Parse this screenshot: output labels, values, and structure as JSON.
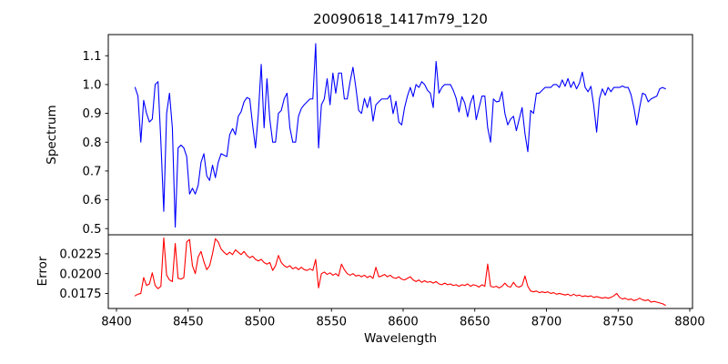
{
  "title": "20090618_1417m79_120",
  "xaxis": {
    "label": "Wavelength",
    "xlim": [
      8394.3,
      8801.9
    ],
    "tick_values": [
      8400,
      8450,
      8500,
      8550,
      8600,
      8650,
      8700,
      8750,
      8800
    ],
    "tick_labels": [
      "8400",
      "8450",
      "8500",
      "8550",
      "8600",
      "8650",
      "8700",
      "8750",
      "8800"
    ]
  },
  "colors": {
    "spectrum_line": "#0000ff",
    "error_line": "#ff0000",
    "axes": "#000000",
    "background": "#ffffff"
  },
  "chart_data": [
    {
      "type": "line",
      "name": "spectrum",
      "ylabel": "Spectrum",
      "color": "#0000ff",
      "grid": false,
      "legend": null,
      "ylim": [
        0.4785,
        1.1735
      ],
      "ytick_values": [
        0.5,
        0.6,
        0.7,
        0.8,
        0.9,
        1.0,
        1.1
      ],
      "ytick_labels": [
        "0.5",
        "0.6",
        "0.7",
        "0.8",
        "0.9",
        "1.0",
        "1.1"
      ],
      "x_start": 8413,
      "x_step": 2,
      "y": [
        0.99,
        0.96,
        0.8,
        0.945,
        0.9,
        0.87,
        0.88,
        1.0,
        1.01,
        0.8,
        0.56,
        0.9,
        0.97,
        0.85,
        0.505,
        0.78,
        0.79,
        0.78,
        0.75,
        0.62,
        0.64,
        0.62,
        0.65,
        0.73,
        0.76,
        0.683,
        0.667,
        0.72,
        0.677,
        0.73,
        0.76,
        0.755,
        0.75,
        0.826,
        0.847,
        0.826,
        0.89,
        0.906,
        0.94,
        0.955,
        0.95,
        0.86,
        0.78,
        0.9,
        1.07,
        0.85,
        1.02,
        0.879,
        0.8,
        0.8,
        0.9,
        0.91,
        0.95,
        0.97,
        0.85,
        0.8,
        0.8,
        0.89,
        0.917,
        0.93,
        0.94,
        0.95,
        0.95,
        1.142,
        0.78,
        0.93,
        0.95,
        1.02,
        0.93,
        1.04,
        0.97,
        1.04,
        1.04,
        0.95,
        0.95,
        1.01,
        1.06,
        0.99,
        0.91,
        0.9,
        0.952,
        0.92,
        0.958,
        0.873,
        0.93,
        0.94,
        0.95,
        0.95,
        0.95,
        0.963,
        0.899,
        0.942,
        0.87,
        0.86,
        0.92,
        0.96,
        0.99,
        0.958,
        1.0,
        0.99,
        1.01,
        1.0,
        0.98,
        0.97,
        0.92,
        1.08,
        0.97,
        0.99,
        1.0,
        1.0,
        1.0,
        0.98,
        0.952,
        0.905,
        0.958,
        0.936,
        0.888,
        0.936,
        0.963,
        0.878,
        0.92,
        0.96,
        0.96,
        0.85,
        0.8,
        0.95,
        0.94,
        0.942,
        0.975,
        0.9,
        0.86,
        0.88,
        0.89,
        0.84,
        0.88,
        0.92,
        0.83,
        0.767,
        0.91,
        0.9,
        0.97,
        0.97,
        0.98,
        0.99,
        0.99,
        0.99,
        1.0,
        1.0,
        0.99,
        1.016,
        0.994,
        1.021,
        0.99,
        1.01,
        0.985,
        1.005,
        1.043,
        0.99,
        0.975,
        0.994,
        0.926,
        0.835,
        0.952,
        0.985,
        0.963,
        0.99,
        0.975,
        0.99,
        0.99,
        0.99,
        0.995,
        0.99,
        0.99,
        0.965,
        0.92,
        0.86,
        0.92,
        0.97,
        0.965,
        0.94,
        0.95,
        0.955,
        0.96,
        0.985,
        0.99,
        0.985
      ]
    },
    {
      "type": "line",
      "name": "error",
      "ylabel": "Error",
      "color": "#ff0000",
      "grid": false,
      "legend": null,
      "ylim": [
        0.0156,
        0.0249
      ],
      "ytick_values": [
        0.0175,
        0.02,
        0.0225
      ],
      "ytick_labels": [
        "0.0175",
        "0.0200",
        "0.0225"
      ],
      "x_start": 8413,
      "x_step": 2,
      "y": [
        0.0172,
        0.0174,
        0.0175,
        0.0195,
        0.0185,
        0.0187,
        0.0201,
        0.0185,
        0.0181,
        0.0184,
        0.0245,
        0.0198,
        0.0192,
        0.019,
        0.0238,
        0.0194,
        0.0193,
        0.0195,
        0.024,
        0.0243,
        0.021,
        0.02,
        0.0221,
        0.0228,
        0.0215,
        0.0205,
        0.021,
        0.0225,
        0.0244,
        0.024,
        0.0231,
        0.0227,
        0.0224,
        0.0227,
        0.0224,
        0.023,
        0.0227,
        0.0224,
        0.0228,
        0.0223,
        0.022,
        0.0222,
        0.0218,
        0.0216,
        0.0218,
        0.0214,
        0.0212,
        0.0214,
        0.0204,
        0.021,
        0.0223,
        0.0214,
        0.021,
        0.0208,
        0.021,
        0.0206,
        0.0208,
        0.0205,
        0.0208,
        0.0205,
        0.0204,
        0.0206,
        0.0204,
        0.0218,
        0.0182,
        0.02,
        0.0202,
        0.0199,
        0.0201,
        0.0198,
        0.02,
        0.0197,
        0.0212,
        0.0205,
        0.02,
        0.0198,
        0.02,
        0.0197,
        0.0198,
        0.0196,
        0.0198,
        0.0195,
        0.0197,
        0.0194,
        0.0208,
        0.0196,
        0.0197,
        0.0199,
        0.0196,
        0.0198,
        0.0195,
        0.0194,
        0.0196,
        0.0193,
        0.0192,
        0.0194,
        0.0196,
        0.0192,
        0.019,
        0.0192,
        0.0189,
        0.0191,
        0.0189,
        0.019,
        0.0188,
        0.019,
        0.0187,
        0.0186,
        0.0188,
        0.0186,
        0.0187,
        0.0185,
        0.0186,
        0.0184,
        0.0186,
        0.0185,
        0.0187,
        0.0184,
        0.0186,
        0.0185,
        0.0183,
        0.0186,
        0.0184,
        0.0212,
        0.0184,
        0.0183,
        0.0184,
        0.0182,
        0.0184,
        0.0188,
        0.0184,
        0.0183,
        0.0189,
        0.0184,
        0.0183,
        0.0185,
        0.0197,
        0.0184,
        0.0178,
        0.0177,
        0.0178,
        0.0176,
        0.0177,
        0.0176,
        0.0177,
        0.0175,
        0.0176,
        0.0174,
        0.0175,
        0.0174,
        0.0173,
        0.0174,
        0.0172,
        0.0174,
        0.0172,
        0.0173,
        0.0171,
        0.0172,
        0.0171,
        0.0172,
        0.017,
        0.0171,
        0.017,
        0.0169,
        0.017,
        0.0169,
        0.017,
        0.0172,
        0.0175,
        0.017,
        0.0168,
        0.0169,
        0.0167,
        0.0168,
        0.0166,
        0.0167,
        0.0169,
        0.0167,
        0.0166,
        0.0167,
        0.0164,
        0.0165,
        0.0164,
        0.0163,
        0.0162,
        0.016
      ]
    }
  ]
}
